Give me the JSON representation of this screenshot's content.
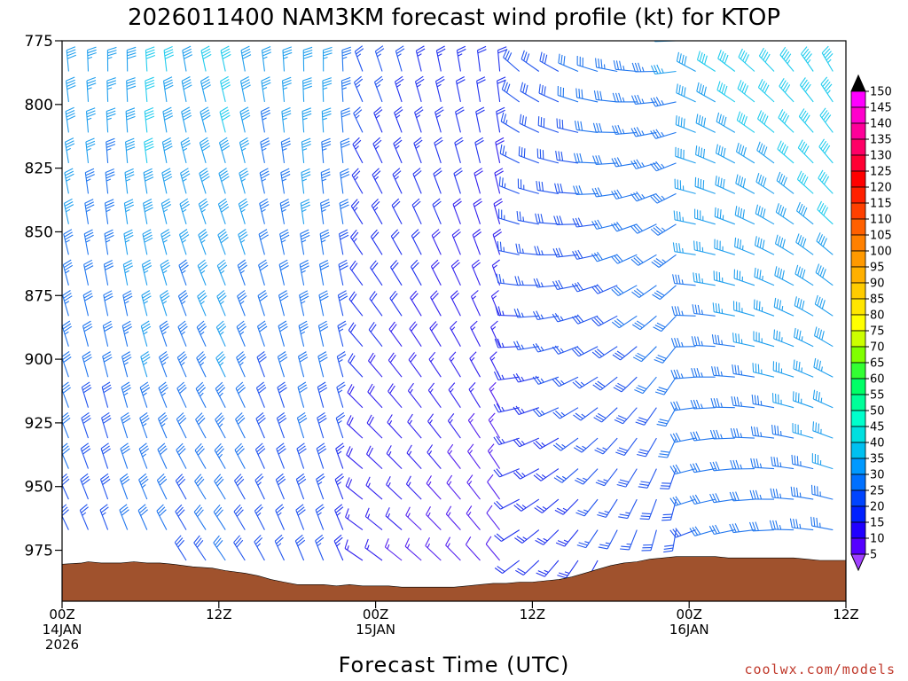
{
  "chart_data": {
    "type": "wind-profile",
    "title": "2026011400 NAM3KM forecast wind profile (kt) for KTOP",
    "xlabel": "Forecast Time (UTC)",
    "ylabel": "",
    "y_ticks": [
      "775",
      "800",
      "825",
      "850",
      "875",
      "900",
      "925",
      "950",
      "975"
    ],
    "y_levels_hPa": [
      775,
      800,
      825,
      850,
      875,
      900,
      925,
      950,
      975
    ],
    "ylim": [
      775,
      995
    ],
    "x_ticks": [
      {
        "hour": 0,
        "line1": "00Z",
        "line2": "14JAN",
        "line3": "2026"
      },
      {
        "hour": 12,
        "line1": "12Z",
        "line2": "",
        "line3": ""
      },
      {
        "hour": 24,
        "line1": "00Z",
        "line2": "15JAN",
        "line3": ""
      },
      {
        "hour": 36,
        "line1": "12Z",
        "line2": "",
        "line3": ""
      },
      {
        "hour": 48,
        "line1": "00Z",
        "line2": "16JAN",
        "line3": ""
      },
      {
        "hour": 60,
        "line1": "12Z",
        "line2": "",
        "line3": ""
      }
    ],
    "xlim_hours": [
      0,
      60
    ],
    "barb_levels_hPa": [
      775,
      787,
      799,
      811,
      823,
      835,
      847,
      859,
      871,
      883,
      895,
      907,
      919,
      931,
      943,
      955,
      967,
      979,
      991
    ],
    "surface_pressure_hPa": [
      [
        0,
        980.5
      ],
      [
        1.5,
        980
      ],
      [
        2,
        979.5
      ],
      [
        3,
        980
      ],
      [
        4.5,
        980
      ],
      [
        5.5,
        979.5
      ],
      [
        6.5,
        980
      ],
      [
        7.5,
        980
      ],
      [
        8.5,
        980.5
      ],
      [
        10,
        981.5
      ],
      [
        11.5,
        982
      ],
      [
        12.5,
        983
      ],
      [
        14,
        984
      ],
      [
        15,
        985
      ],
      [
        16,
        986.5
      ],
      [
        17,
        987.5
      ],
      [
        18,
        988.5
      ],
      [
        19,
        988.5
      ],
      [
        20,
        988.5
      ],
      [
        21,
        989
      ],
      [
        22,
        988.5
      ],
      [
        23,
        989
      ],
      [
        24,
        989
      ],
      [
        25,
        989
      ],
      [
        26,
        989.5
      ],
      [
        27,
        989.5
      ],
      [
        28,
        989.5
      ],
      [
        29,
        989.5
      ],
      [
        30,
        989.5
      ],
      [
        31,
        989
      ],
      [
        32,
        988.5
      ],
      [
        33,
        988
      ],
      [
        34,
        988
      ],
      [
        35,
        987.5
      ],
      [
        36,
        987.5
      ],
      [
        37,
        987
      ],
      [
        38,
        986.5
      ],
      [
        39,
        985.5
      ],
      [
        40,
        984
      ],
      [
        41,
        982.5
      ],
      [
        42,
        981
      ],
      [
        43,
        980
      ],
      [
        44,
        979.5
      ],
      [
        45,
        978.5
      ],
      [
        46,
        978
      ],
      [
        47,
        977.5
      ],
      [
        48,
        977.5
      ],
      [
        49,
        977.5
      ],
      [
        50,
        977.5
      ],
      [
        51,
        978
      ],
      [
        52,
        978
      ],
      [
        53,
        978
      ],
      [
        54,
        978
      ],
      [
        55,
        978
      ],
      [
        56,
        978
      ],
      [
        57,
        978.5
      ],
      [
        58,
        979
      ],
      [
        59,
        979
      ],
      [
        60,
        979
      ]
    ],
    "surface_color": "#a0522d",
    "colorbar": {
      "labels": [
        "150",
        "145",
        "140",
        "135",
        "130",
        "125",
        "120",
        "115",
        "110",
        "105",
        "100",
        "95",
        "90",
        "85",
        "80",
        "75",
        "70",
        "65",
        "60",
        "55",
        "50",
        "45",
        "40",
        "35",
        "30",
        "25",
        "20",
        "15",
        "10",
        "5"
      ],
      "values": [
        150,
        145,
        140,
        135,
        130,
        125,
        120,
        115,
        110,
        105,
        100,
        95,
        90,
        85,
        80,
        75,
        70,
        65,
        60,
        55,
        50,
        45,
        40,
        35,
        30,
        25,
        20,
        15,
        10,
        5
      ],
      "colors": [
        "#ff00ff",
        "#ff00cc",
        "#ff0099",
        "#ff0066",
        "#ff0033",
        "#ff0000",
        "#ff2000",
        "#ff4000",
        "#ff6000",
        "#ff8000",
        "#ff9900",
        "#ffb000",
        "#ffcc00",
        "#ffe600",
        "#ffff00",
        "#ccff00",
        "#80ff00",
        "#33ff33",
        "#00ff66",
        "#00ff99",
        "#00ffcc",
        "#00e0e0",
        "#00c0f0",
        "#0099ff",
        "#0070ff",
        "#0044ff",
        "#0020ff",
        "#2000ff",
        "#5500ff",
        "#8800ff"
      ],
      "top_cap_color": "#000000",
      "bottom_cap_color": "#a040ff"
    }
  },
  "footer": {
    "credit": "coolwx.com/models"
  }
}
